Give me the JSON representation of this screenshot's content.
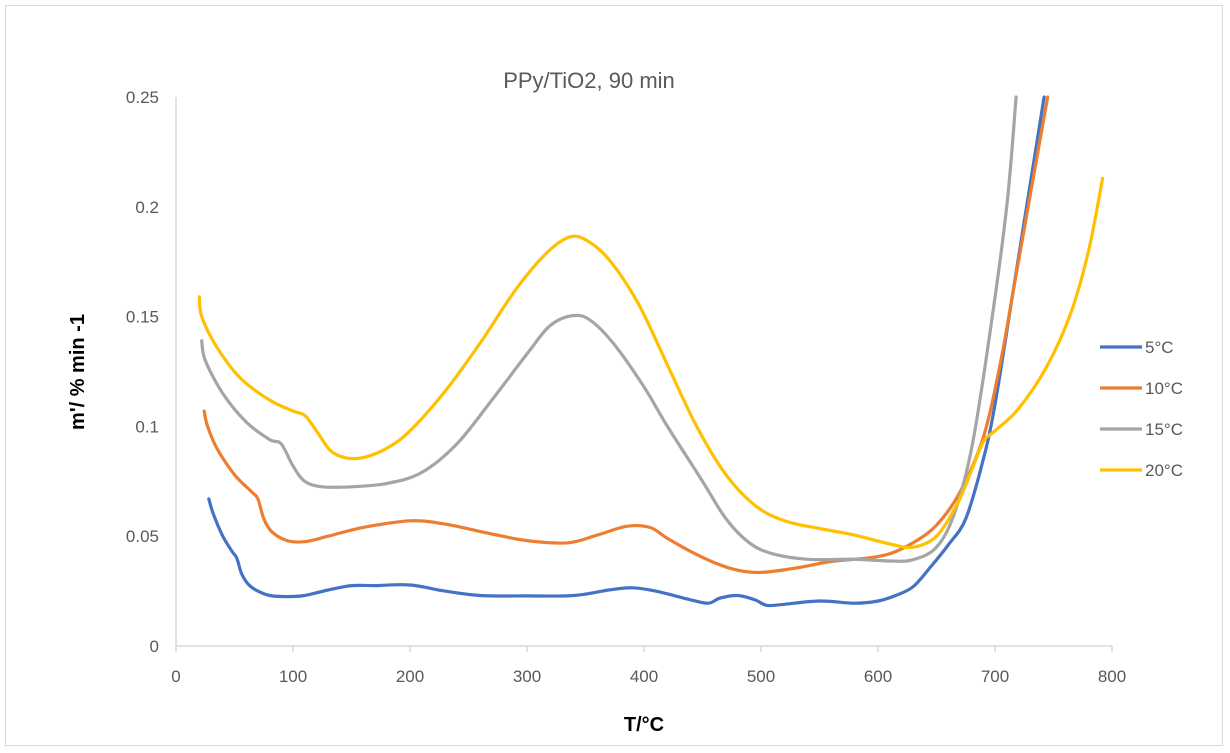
{
  "chart_data": {
    "type": "line",
    "title": "PPy/TiO2, 90 min",
    "xlabel": "T/°C",
    "ylabel": "m'/ % min -1",
    "xlim": [
      0,
      800
    ],
    "ylim": [
      0,
      0.25
    ],
    "x_ticks": [
      "0",
      "100",
      "200",
      "300",
      "400",
      "500",
      "600",
      "700",
      "800"
    ],
    "y_ticks": [
      "0",
      "0.05",
      "0.1",
      "0.15",
      "0.2",
      "0.25"
    ],
    "grid": false,
    "legend_position": "right",
    "series": [
      {
        "name": "5°C",
        "color": "#4472C4",
        "points": [
          [
            28,
            0.067
          ],
          [
            32,
            0.06
          ],
          [
            40,
            0.05
          ],
          [
            48,
            0.043
          ],
          [
            52,
            0.04
          ],
          [
            56,
            0.033
          ],
          [
            62,
            0.028
          ],
          [
            70,
            0.025
          ],
          [
            80,
            0.023
          ],
          [
            95,
            0.0225
          ],
          [
            110,
            0.023
          ],
          [
            130,
            0.0255
          ],
          [
            150,
            0.0275
          ],
          [
            170,
            0.0275
          ],
          [
            200,
            0.0278
          ],
          [
            230,
            0.025
          ],
          [
            260,
            0.023
          ],
          [
            300,
            0.0228
          ],
          [
            340,
            0.023
          ],
          [
            370,
            0.0255
          ],
          [
            390,
            0.0265
          ],
          [
            410,
            0.025
          ],
          [
            440,
            0.021
          ],
          [
            455,
            0.0195
          ],
          [
            465,
            0.0218
          ],
          [
            480,
            0.023
          ],
          [
            495,
            0.021
          ],
          [
            505,
            0.0185
          ],
          [
            520,
            0.019
          ],
          [
            550,
            0.0205
          ],
          [
            580,
            0.0195
          ],
          [
            600,
            0.0205
          ],
          [
            615,
            0.023
          ],
          [
            630,
            0.027
          ],
          [
            645,
            0.036
          ],
          [
            660,
            0.046
          ],
          [
            675,
            0.058
          ],
          [
            690,
            0.085
          ],
          [
            700,
            0.11
          ],
          [
            715,
            0.16
          ],
          [
            730,
            0.21
          ],
          [
            742,
            0.25
          ]
        ]
      },
      {
        "name": "10°C",
        "color": "#ED7D31",
        "points": [
          [
            24,
            0.107
          ],
          [
            27,
            0.1
          ],
          [
            35,
            0.09
          ],
          [
            50,
            0.078
          ],
          [
            65,
            0.07
          ],
          [
            70,
            0.067
          ],
          [
            75,
            0.058
          ],
          [
            82,
            0.052
          ],
          [
            95,
            0.048
          ],
          [
            110,
            0.0475
          ],
          [
            130,
            0.05
          ],
          [
            160,
            0.054
          ],
          [
            200,
            0.057
          ],
          [
            230,
            0.0555
          ],
          [
            270,
            0.051
          ],
          [
            300,
            0.048
          ],
          [
            335,
            0.047
          ],
          [
            360,
            0.0505
          ],
          [
            385,
            0.0545
          ],
          [
            405,
            0.054
          ],
          [
            420,
            0.049
          ],
          [
            440,
            0.043
          ],
          [
            460,
            0.038
          ],
          [
            480,
            0.0345
          ],
          [
            500,
            0.0335
          ],
          [
            530,
            0.0355
          ],
          [
            560,
            0.0385
          ],
          [
            590,
            0.04
          ],
          [
            610,
            0.042
          ],
          [
            630,
            0.047
          ],
          [
            650,
            0.055
          ],
          [
            670,
            0.07
          ],
          [
            690,
            0.095
          ],
          [
            705,
            0.13
          ],
          [
            720,
            0.175
          ],
          [
            735,
            0.22
          ],
          [
            745,
            0.25
          ]
        ]
      },
      {
        "name": "15°C",
        "color": "#A5A5A5",
        "points": [
          [
            22,
            0.139
          ],
          [
            25,
            0.13
          ],
          [
            40,
            0.115
          ],
          [
            60,
            0.102
          ],
          [
            80,
            0.094
          ],
          [
            90,
            0.092
          ],
          [
            100,
            0.082
          ],
          [
            110,
            0.075
          ],
          [
            125,
            0.0725
          ],
          [
            150,
            0.0725
          ],
          [
            180,
            0.074
          ],
          [
            210,
            0.079
          ],
          [
            240,
            0.092
          ],
          [
            270,
            0.112
          ],
          [
            300,
            0.133
          ],
          [
            320,
            0.146
          ],
          [
            340,
            0.1505
          ],
          [
            355,
            0.148
          ],
          [
            375,
            0.137
          ],
          [
            400,
            0.118
          ],
          [
            420,
            0.1
          ],
          [
            450,
            0.075
          ],
          [
            470,
            0.058
          ],
          [
            490,
            0.047
          ],
          [
            510,
            0.042
          ],
          [
            540,
            0.0395
          ],
          [
            580,
            0.0395
          ],
          [
            610,
            0.0387
          ],
          [
            630,
            0.0393
          ],
          [
            650,
            0.045
          ],
          [
            665,
            0.06
          ],
          [
            680,
            0.09
          ],
          [
            695,
            0.14
          ],
          [
            710,
            0.2
          ],
          [
            718,
            0.25
          ]
        ]
      },
      {
        "name": "20°C",
        "color": "#FFC000",
        "points": [
          [
            20,
            0.159
          ],
          [
            22,
            0.15
          ],
          [
            35,
            0.136
          ],
          [
            55,
            0.122
          ],
          [
            80,
            0.112
          ],
          [
            100,
            0.107
          ],
          [
            110,
            0.105
          ],
          [
            120,
            0.098
          ],
          [
            132,
            0.089
          ],
          [
            145,
            0.0857
          ],
          [
            160,
            0.0858
          ],
          [
            180,
            0.09
          ],
          [
            200,
            0.098
          ],
          [
            230,
            0.116
          ],
          [
            260,
            0.138
          ],
          [
            290,
            0.162
          ],
          [
            315,
            0.178
          ],
          [
            335,
            0.186
          ],
          [
            350,
            0.185
          ],
          [
            370,
            0.176
          ],
          [
            395,
            0.156
          ],
          [
            420,
            0.128
          ],
          [
            445,
            0.1
          ],
          [
            470,
            0.078
          ],
          [
            495,
            0.064
          ],
          [
            520,
            0.057
          ],
          [
            550,
            0.0535
          ],
          [
            580,
            0.0505
          ],
          [
            610,
            0.0465
          ],
          [
            630,
            0.045
          ],
          [
            650,
            0.05
          ],
          [
            668,
            0.065
          ],
          [
            680,
            0.08
          ],
          [
            690,
            0.093
          ],
          [
            700,
            0.098
          ],
          [
            720,
            0.108
          ],
          [
            745,
            0.128
          ],
          [
            765,
            0.152
          ],
          [
            780,
            0.18
          ],
          [
            792,
            0.213
          ]
        ]
      }
    ]
  }
}
